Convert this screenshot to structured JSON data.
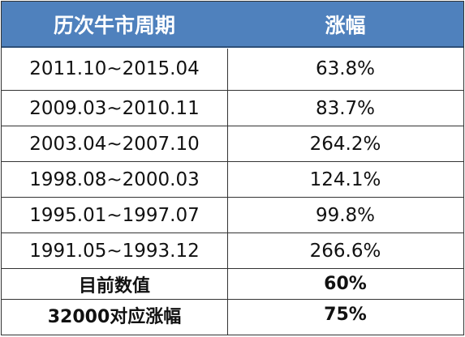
{
  "table": {
    "headers": [
      "历次牛市周期",
      "涨幅"
    ],
    "rows": [
      [
        "2011.10~2015.04",
        "63.8%"
      ],
      [
        "2009.03~2010.11",
        "83.7%"
      ],
      [
        "2003.04~2007.10",
        "264.2%"
      ],
      [
        "1998.08~2000.03",
        "124.1%"
      ],
      [
        "1995.01~1997.07",
        "99.8%"
      ],
      [
        "1991.05~1993.12",
        "266.6%"
      ]
    ],
    "summary": [
      [
        "目前数值",
        "60%"
      ],
      [
        "32000对应涨幅",
        "75%"
      ]
    ]
  },
  "colors": {
    "header_bg": "#4f81bd",
    "header_text": "#ffffff"
  }
}
